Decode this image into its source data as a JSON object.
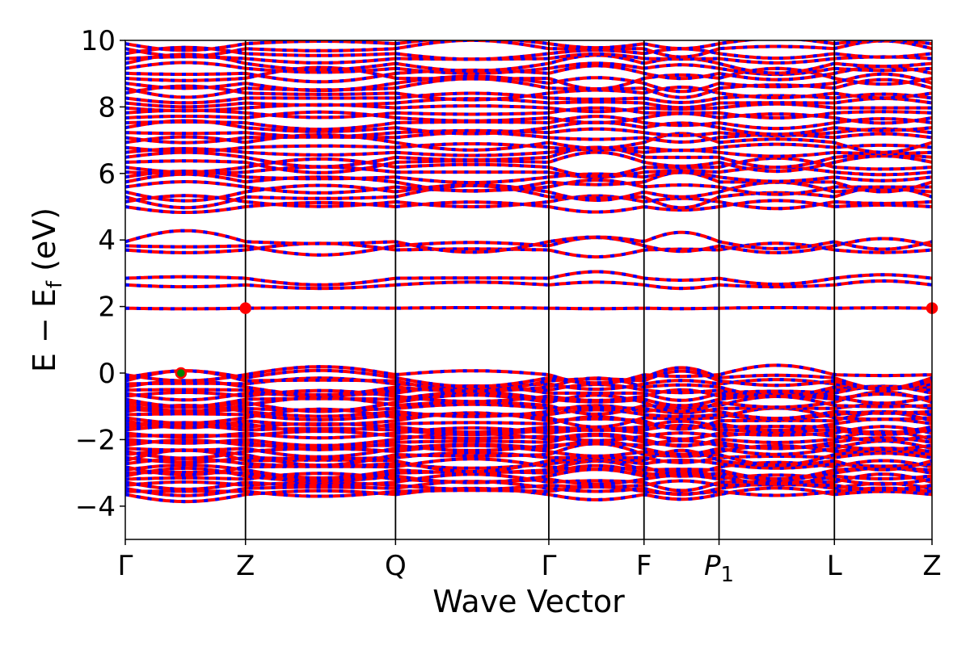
{
  "chart_data": {
    "type": "line",
    "title": "",
    "xlabel": "Wave Vector",
    "ylabel": {
      "main": "E − E",
      "sub": "f",
      "unit": " (eV)"
    },
    "ylim": [
      -5,
      10
    ],
    "yticks": [
      {
        "value": -4,
        "label": "−4"
      },
      {
        "value": -2,
        "label": "−2"
      },
      {
        "value": 0,
        "label": "0"
      },
      {
        "value": 2,
        "label": "2"
      },
      {
        "value": 4,
        "label": "4"
      },
      {
        "value": 6,
        "label": "6"
      },
      {
        "value": 8,
        "label": "8"
      },
      {
        "value": 10,
        "label": "10"
      }
    ],
    "xlim": [
      0,
      1
    ],
    "kpoints": [
      {
        "label": "Γ",
        "sub": "",
        "pos": 0.0
      },
      {
        "label": "Z",
        "sub": "",
        "pos": 0.149
      },
      {
        "label": "Q",
        "sub": "",
        "pos": 0.335
      },
      {
        "label": "Γ",
        "sub": "",
        "pos": 0.525
      },
      {
        "label": "F",
        "sub": "",
        "pos": 0.643
      },
      {
        "label": "P",
        "sub": "1",
        "pos": 0.736
      },
      {
        "label": "L",
        "sub": "",
        "pos": 0.879
      },
      {
        "label": "Z",
        "sub": "",
        "pos": 1.0
      }
    ],
    "band_colors": {
      "spin_up": "#ff0000",
      "spin_down": "#0000ff"
    },
    "band_groups": [
      {
        "name": "valence",
        "emin": -3.65,
        "emax": -0.05,
        "count": 40
      },
      {
        "name": "band-2.0",
        "emin": 1.95,
        "emax": 1.95,
        "count": 1
      },
      {
        "name": "band-2.7",
        "emin": 2.65,
        "emax": 2.85,
        "count": 2
      },
      {
        "name": "band-3.8",
        "emin": 3.7,
        "emax": 3.95,
        "count": 3
      },
      {
        "name": "conduction",
        "emin": 5.0,
        "emax": 9.9,
        "count": 34
      }
    ],
    "markers": [
      {
        "name": "vbm",
        "x": 0.069,
        "y": 0.0,
        "fill": "#008000",
        "edge": "#ff0000"
      },
      {
        "name": "cbm-1",
        "x": 0.149,
        "y": 1.95,
        "fill": "#ff0000",
        "edge": "#ff0000"
      },
      {
        "name": "cbm-2",
        "x": 1.0,
        "y": 1.95,
        "fill": "#ff0000",
        "edge": "#ff0000"
      }
    ],
    "grid": false,
    "legend": "none"
  }
}
